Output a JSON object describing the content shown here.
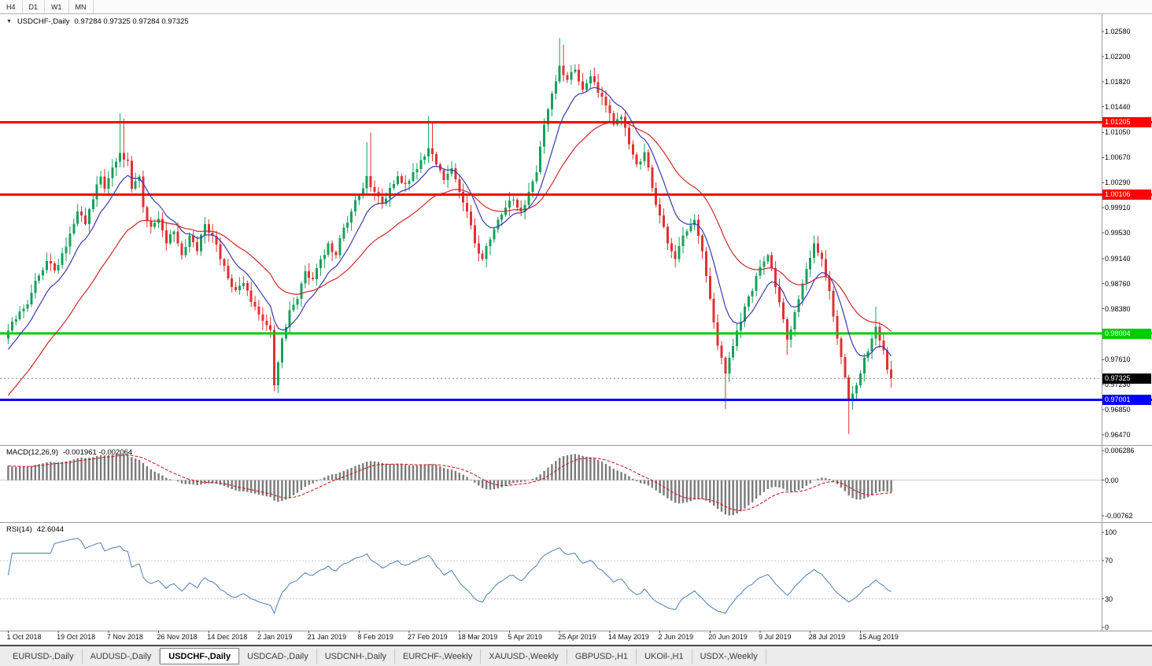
{
  "icons": {
    "chart_dropdown": "▼"
  },
  "toolbar": {
    "timeframes": [
      "H4",
      "D1",
      "W1",
      "MN"
    ]
  },
  "main_title": {
    "symbol": "USDCHF-,Daily",
    "quote": "0.97284 0.97325 0.97284 0.97325"
  },
  "price_axis_ticks": [
    "1.02580",
    "1.02200",
    "1.01820",
    "1.01440",
    "1.01050",
    "1.00670",
    "1.00290",
    "0.99910",
    "0.99530",
    "0.99140",
    "0.98760",
    "0.98380",
    "0.97610",
    "0.97230",
    "0.96850",
    "0.96470"
  ],
  "x_axis_labels": [
    "1 Oct 2018",
    "19 Oct 2018",
    "7 Nov 2018",
    "26 Nov 2018",
    "14 Dec 2018",
    "2 Jan 2019",
    "21 Jan 2019",
    "8 Feb 2019",
    "27 Feb 2019",
    "18 Mar 2019",
    "5 Apr 2019",
    "25 Apr 2019",
    "14 May 2019",
    "2 Jun 2019",
    "20 Jun 2019",
    "9 Jul 2019",
    "28 Jul 2019",
    "15 Aug 2019"
  ],
  "x_axis_label_bars": [
    0,
    13,
    26,
    39,
    52,
    65,
    78,
    91,
    104,
    117,
    130,
    143,
    156,
    169,
    182,
    195,
    208,
    221
  ],
  "tabs": {
    "active_index": 2,
    "items": [
      "EURUSD-,Daily",
      "AUDUSD-,Daily",
      "USDCHF-,Daily",
      "USDCAD-,Daily",
      "USDCNH-,Daily",
      "EURCHF-,Weekly",
      "XAUUSD-,Weekly",
      "GBPUSD-,H1",
      "UKOil-,H1",
      "USDX-,Weekly"
    ]
  },
  "colors": {
    "up": "#17a05e",
    "down": "#e03232",
    "ma_fast": "#3939b0",
    "ma_slow": "#cf2929",
    "macd_hist": "#7a7a7a",
    "macd_signal": "#cc1111",
    "rsi_line": "#4a7eb5",
    "line_red": "#ff0000",
    "line_green": "#00cc00",
    "line_blue": "#0000ff",
    "current_badge": "#000000"
  },
  "chart_data": [
    {
      "id": "price",
      "type": "candlestick",
      "symbol": "USDCHF",
      "timeframe": "Daily",
      "bars_total": 230,
      "y_range": [
        0.96315,
        1.02842
      ],
      "hlines": [
        {
          "value": 1.01205,
          "label": "1.01205",
          "color_key": "line_red",
          "width": 3,
          "name": "resistance-line-upper"
        },
        {
          "value": 1.00106,
          "label": "1.00106",
          "color_key": "line_red",
          "width": 3,
          "name": "resistance-line-lower"
        },
        {
          "value": 0.98004,
          "label": "0.98004",
          "color_key": "line_green",
          "width": 3,
          "name": "support-line-green"
        },
        {
          "value": 0.97001,
          "label": "0.97001",
          "color_key": "line_blue",
          "width": 3,
          "name": "support-line-blue"
        }
      ],
      "current_price": {
        "value": 0.97325,
        "label": "0.97325"
      },
      "moving_averages": [
        {
          "period": 10,
          "color_key": "ma_fast",
          "seed": 0.977
        },
        {
          "period": 30,
          "color_key": "ma_slow",
          "seed": 0.97
        }
      ],
      "close_anchors": [
        [
          0,
          0.9805
        ],
        [
          2,
          0.9822
        ],
        [
          4,
          0.9838
        ],
        [
          6,
          0.9862
        ],
        [
          8,
          0.9888
        ],
        [
          10,
          0.991
        ],
        [
          12,
          0.9896
        ],
        [
          14,
          0.9922
        ],
        [
          16,
          0.9952
        ],
        [
          18,
          0.9985
        ],
        [
          20,
          0.9966
        ],
        [
          22,
          1.0004
        ],
        [
          24,
          1.0038
        ],
        [
          25,
          1.002
        ],
        [
          27,
          1.0052
        ],
        [
          29,
          1.0074
        ],
        [
          31,
          1.0062
        ],
        [
          32,
          1.002
        ],
        [
          34,
          1.0038
        ],
        [
          35,
          0.9992
        ],
        [
          37,
          0.9962
        ],
        [
          39,
          0.9974
        ],
        [
          41,
          0.9937
        ],
        [
          43,
          0.9955
        ],
        [
          45,
          0.9919
        ],
        [
          47,
          0.9949
        ],
        [
          49,
          0.9925
        ],
        [
          51,
          0.9966
        ],
        [
          53,
          0.9948
        ],
        [
          55,
          0.9913
        ],
        [
          57,
          0.9884
        ],
        [
          59,
          0.9866
        ],
        [
          61,
          0.9877
        ],
        [
          63,
          0.9848
        ],
        [
          65,
          0.9829
        ],
        [
          68,
          0.9806
        ],
        [
          69,
          0.9722
        ],
        [
          71,
          0.9793
        ],
        [
          73,
          0.9836
        ],
        [
          75,
          0.9853
        ],
        [
          77,
          0.9895
        ],
        [
          79,
          0.9883
        ],
        [
          81,
          0.9913
        ],
        [
          83,
          0.9937
        ],
        [
          85,
          0.9919
        ],
        [
          87,
          0.9961
        ],
        [
          89,
          0.9985
        ],
        [
          91,
          1.0009
        ],
        [
          93,
          1.0039
        ],
        [
          95,
          1.0015
        ],
        [
          97,
          0.9997
        ],
        [
          99,
          1.0021
        ],
        [
          101,
          1.0039
        ],
        [
          103,
          1.0027
        ],
        [
          105,
          1.0045
        ],
        [
          107,
          1.0063
        ],
        [
          109,
          1.0081
        ],
        [
          111,
          1.0057
        ],
        [
          113,
          1.0033
        ],
        [
          115,
          1.0051
        ],
        [
          117,
          1.0015
        ],
        [
          119,
          0.9985
        ],
        [
          121,
          0.9937
        ],
        [
          123,
          0.9913
        ],
        [
          125,
          0.9943
        ],
        [
          127,
          0.9973
        ],
        [
          129,
          0.9991
        ],
        [
          131,
          1.0003
        ],
        [
          133,
          0.9985
        ],
        [
          135,
          1.0015
        ],
        [
          137,
          1.0045
        ],
        [
          139,
          1.0117
        ],
        [
          141,
          1.0164
        ],
        [
          143,
          1.0206
        ],
        [
          145,
          1.0185
        ],
        [
          147,
          1.02
        ],
        [
          149,
          1.017
        ],
        [
          151,
          1.019
        ],
        [
          153,
          1.0165
        ],
        [
          155,
          1.0146
        ],
        [
          157,
          1.0117
        ],
        [
          159,
          1.0129
        ],
        [
          161,
          1.0087
        ],
        [
          163,
          1.0057
        ],
        [
          165,
          1.0075
        ],
        [
          167,
          1.0021
        ],
        [
          169,
          0.9979
        ],
        [
          171,
          0.9937
        ],
        [
          173,
          0.9913
        ],
        [
          175,
          0.9949
        ],
        [
          178,
          0.9973
        ],
        [
          180,
          0.9925
        ],
        [
          182,
          0.9853
        ],
        [
          184,
          0.9782
        ],
        [
          186,
          0.974
        ],
        [
          187,
          0.9764
        ],
        [
          189,
          0.9805
        ],
        [
          191,
          0.9841
        ],
        [
          193,
          0.9865
        ],
        [
          195,
          0.9901
        ],
        [
          197,
          0.9919
        ],
        [
          199,
          0.9871
        ],
        [
          201,
          0.9822
        ],
        [
          202,
          0.9791
        ],
        [
          204,
          0.9833
        ],
        [
          206,
          0.9876
        ],
        [
          207,
          0.9898
        ],
        [
          209,
          0.9937
        ],
        [
          211,
          0.9913
        ],
        [
          213,
          0.9865
        ],
        [
          215,
          0.9793
        ],
        [
          217,
          0.9734
        ],
        [
          218,
          0.9698
        ],
        [
          220,
          0.9722
        ],
        [
          222,
          0.9764
        ],
        [
          224,
          0.9793
        ],
        [
          225,
          0.9811
        ],
        [
          227,
          0.9775
        ],
        [
          228,
          0.9746
        ],
        [
          229,
          0.97325
        ]
      ],
      "wick_overrides": [
        [
          29,
          "high",
          1.0134
        ],
        [
          30,
          "high",
          1.0126
        ],
        [
          93,
          "high",
          1.009
        ],
        [
          94,
          "high",
          1.0105
        ],
        [
          109,
          "high",
          1.013
        ],
        [
          110,
          "high",
          1.0122
        ],
        [
          143,
          "high",
          1.0248
        ],
        [
          144,
          "high",
          1.0238
        ],
        [
          69,
          "low",
          0.9713
        ],
        [
          186,
          "low",
          0.9686
        ],
        [
          202,
          "low",
          0.9768
        ],
        [
          218,
          "low",
          0.9648
        ],
        [
          225,
          "high",
          0.9841
        ]
      ]
    },
    {
      "id": "macd",
      "type": "histogram+line",
      "label": "MACD(12,26,9)",
      "current": "-0.001961 -0.002064",
      "fast": 12,
      "slow": 26,
      "signal": 9,
      "y_range": [
        -0.00893,
        0.00728
      ],
      "axis_ticks": [
        "0.006286",
        "0.00",
        "-0.00762"
      ]
    },
    {
      "id": "rsi",
      "type": "line",
      "label": "RSI(14)",
      "current": "42.6044",
      "period": 14,
      "levels": [
        70,
        30
      ],
      "y_range": [
        -3.3,
        109.8
      ],
      "axis_ticks": [
        "100",
        "70",
        "30",
        "0"
      ]
    }
  ]
}
